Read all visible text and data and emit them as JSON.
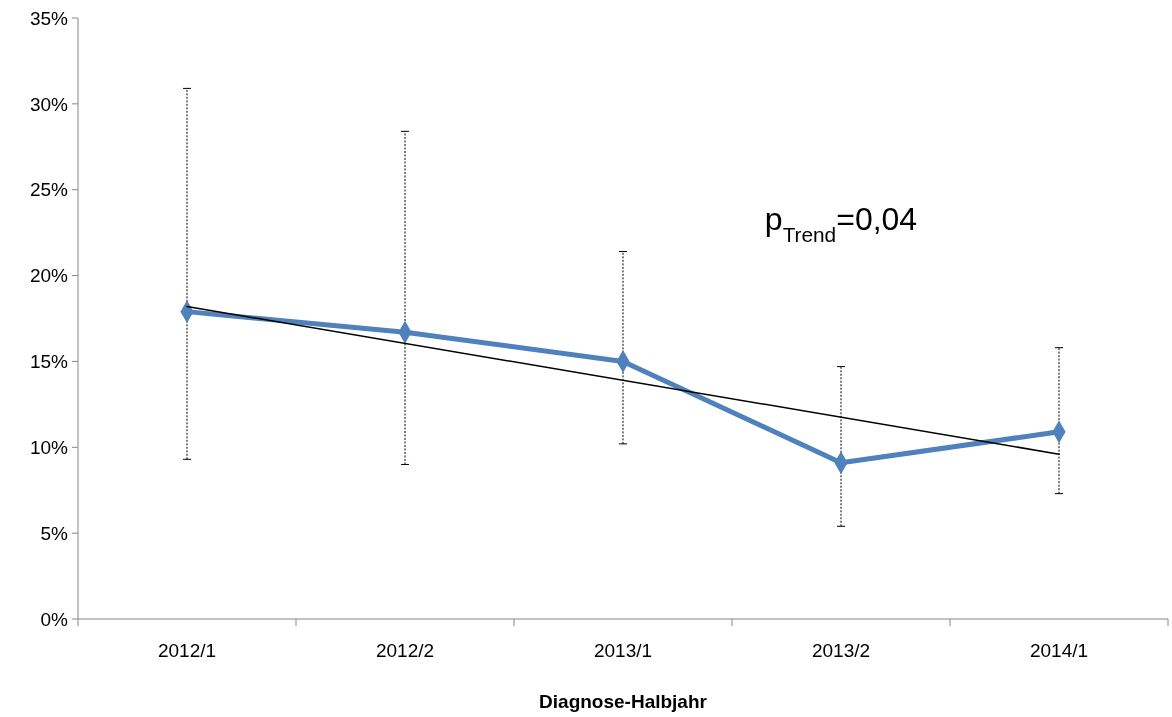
{
  "chart_data": {
    "type": "line",
    "xlabel": "Diagnose-Halbjahr",
    "categories": [
      "2012/1",
      "2012/2",
      "2013/1",
      "2013/2",
      "2014/1"
    ],
    "series": [
      {
        "color": "#4f81bd",
        "values": [
          17.9,
          16.7,
          15.0,
          9.1,
          10.9
        ],
        "errors": [
          [
            9.3,
            30.9
          ],
          [
            9.0,
            28.4
          ],
          [
            10.2,
            21.4
          ],
          [
            5.4,
            14.7
          ],
          [
            7.3,
            15.8
          ]
        ],
        "marker": "diamond"
      },
      {
        "type": "line",
        "color": "#000000",
        "x": [
          "2012/1",
          "2014/1"
        ],
        "values": [
          18.2,
          9.6
        ],
        "marker": "none"
      }
    ],
    "ylim": [
      0,
      35
    ],
    "yticks": [
      {
        "value": 0,
        "label": "0%"
      },
      {
        "value": 5,
        "label": "5%"
      },
      {
        "value": 10,
        "label": "10%"
      },
      {
        "value": 15,
        "label": "15%"
      },
      {
        "value": 20,
        "label": "20%"
      },
      {
        "value": 25,
        "label": "25%"
      },
      {
        "value": 30,
        "label": "30%"
      },
      {
        "value": 35,
        "label": "35%"
      }
    ],
    "grid": false,
    "annotations": [
      "p$_{Trend}$=0,04"
    ]
  }
}
